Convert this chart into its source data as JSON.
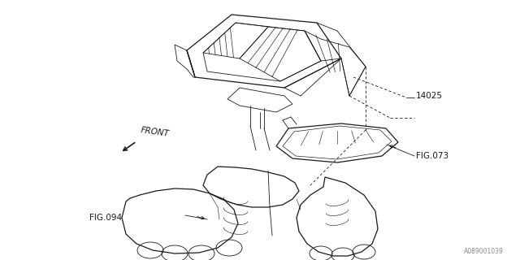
{
  "bg_color": "#ffffff",
  "line_color": "#1a1a1a",
  "labels": {
    "part_number": "14025",
    "fig073": "FIG.073",
    "fig094": "FIG.094",
    "front": "FRONT",
    "watermark": "A089001039"
  },
  "figsize": [
    6.4,
    3.2
  ],
  "dpi": 100
}
